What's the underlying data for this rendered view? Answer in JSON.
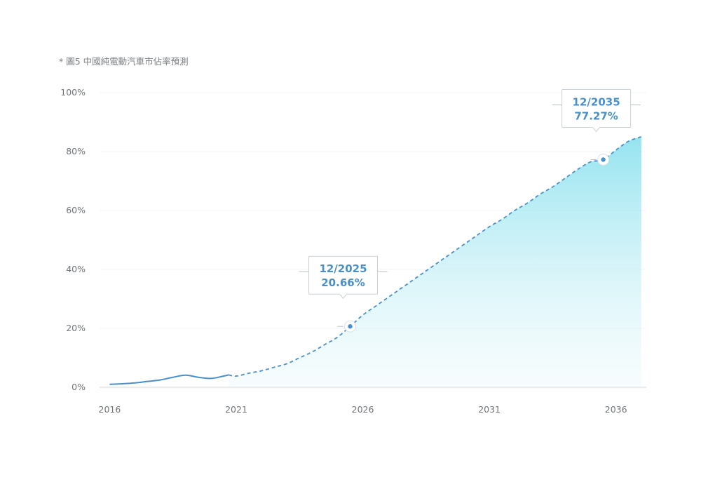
{
  "chart_data": {
    "type": "area",
    "title": "* 圖5 中國純電動汽車市佔率預測",
    "xlabel": "",
    "ylabel": "",
    "x_ticks": [
      "2016",
      "2021",
      "2026",
      "2031",
      "2036"
    ],
    "y_ticks": [
      "0%",
      "20%",
      "40%",
      "60%",
      "80%",
      "100%"
    ],
    "ylim": [
      0,
      100
    ],
    "xlim": [
      2015.6,
      2037.2
    ],
    "grid": true,
    "series": [
      {
        "style": "solid-line",
        "color": "#4a90c8",
        "x": [
          2016.0,
          2016.5,
          2017.0,
          2017.5,
          2018.0,
          2018.5,
          2019.0,
          2019.5,
          2020.0,
          2020.5,
          2020.7
        ],
        "y": [
          1.0,
          1.2,
          1.5,
          2.0,
          2.5,
          3.4,
          4.1,
          3.4,
          3.0,
          3.8,
          4.2
        ]
      },
      {
        "style": "dashed-line-with-area",
        "color": "#4a90c8",
        "area_color": "#8fe0ee",
        "x": [
          2020.7,
          2021.0,
          2021.5,
          2022.0,
          2022.5,
          2023.0,
          2023.5,
          2024.0,
          2024.5,
          2025.0,
          2025.5,
          2026.0,
          2026.5,
          2027.0,
          2027.5,
          2028.0,
          2028.5,
          2029.0,
          2029.5,
          2030.0,
          2030.5,
          2031.0,
          2031.5,
          2032.0,
          2032.5,
          2033.0,
          2033.5,
          2034.0,
          2034.5,
          2035.0,
          2035.5,
          2036.0,
          2036.5,
          2037.0
        ],
        "y": [
          4.2,
          3.8,
          4.8,
          5.6,
          6.8,
          8.0,
          10.0,
          12.0,
          14.5,
          17.0,
          20.66,
          24.5,
          27.5,
          30.5,
          33.5,
          36.5,
          39.5,
          42.5,
          45.5,
          48.5,
          51.5,
          54.5,
          57.0,
          60.0,
          62.5,
          65.5,
          68.0,
          71.0,
          74.0,
          76.5,
          77.27,
          80.5,
          83.5,
          85.0
        ]
      }
    ],
    "annotations": [
      {
        "date": "12/2025",
        "value": "20.66%",
        "x": 2025.5,
        "y": 20.66
      },
      {
        "date": "12/2035",
        "value": "77.27%",
        "x": 2035.5,
        "y": 77.27
      }
    ]
  }
}
